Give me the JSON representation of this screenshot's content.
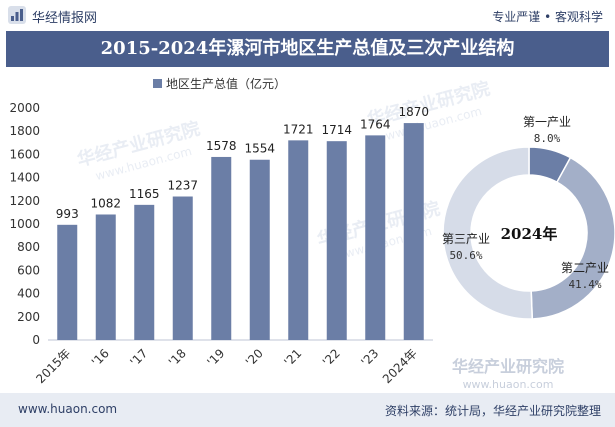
{
  "header": {
    "brand": "华经情报网",
    "tagline": "专业严谨 • 客观科学"
  },
  "title": "2015-2024年漯河市地区生产总值及三次产业结构",
  "footer": {
    "website": "www.huaon.com",
    "source": "资料来源：统计局，华经产业研究院整理"
  },
  "watermark": "华经产业研究院",
  "watermark_url": "www.huaon.com",
  "colors": {
    "bar": "#6b7ea6",
    "title_bg": "#4a5e8c",
    "primary": "#6b7ea6",
    "secondary": "#a3afc8",
    "tertiary": "#d6dce8"
  },
  "chart_data": [
    {
      "type": "bar",
      "legend": "地区生产总值（亿元）",
      "categories": [
        "2015年",
        "'16",
        "'17",
        "'18",
        "'19",
        "'20",
        "'21",
        "'22",
        "'23",
        "2024年"
      ],
      "values": [
        993,
        1082,
        1165,
        1237,
        1578,
        1554,
        1721,
        1714,
        1764,
        1870
      ],
      "ylim": [
        0,
        2000
      ],
      "yticks": [
        0,
        200,
        400,
        600,
        800,
        1000,
        1200,
        1400,
        1600,
        1800,
        2000
      ],
      "grid": false
    },
    {
      "type": "pie",
      "center_label": "2024年",
      "slices": [
        {
          "name": "第一产业",
          "value": 8.0,
          "label": "8.0%"
        },
        {
          "name": "第二产业",
          "value": 41.4,
          "label": "41.4%"
        },
        {
          "name": "第三产业",
          "value": 50.6,
          "label": "50.6%"
        }
      ]
    }
  ]
}
